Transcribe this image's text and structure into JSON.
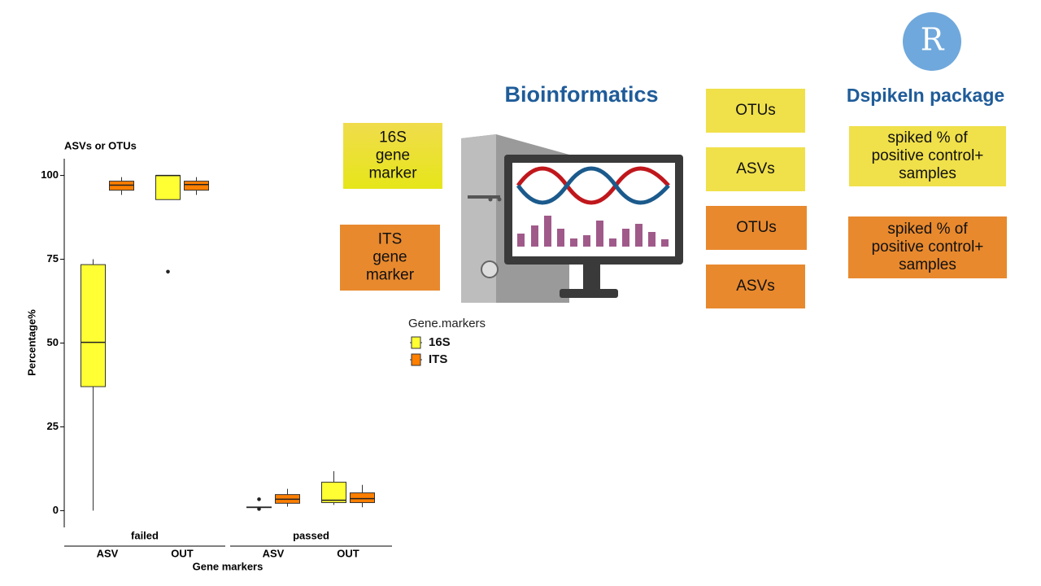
{
  "chart_data": {
    "type": "boxplot",
    "title": "ASVs or OTUs",
    "y_label": "Percentage%",
    "x_label": "Gene markers",
    "facets": [
      "failed",
      "passed"
    ],
    "categories": [
      "ASV",
      "OUT"
    ],
    "ylim": [
      -5,
      105
    ],
    "yticks": [
      0,
      25,
      50,
      75,
      100
    ],
    "legend_title": "Gene.markers",
    "series": [
      {
        "name": "16S",
        "color": "#ffff33",
        "boxes": [
          [
            {
              "min": 0,
              "q1": 37,
              "median": 50.2,
              "q3": 73.4,
              "max": 75
            },
            {
              "min": 92.8,
              "q1": 92.8,
              "median": 100,
              "q3": 100,
              "max": 100,
              "outliers": [
                71.3
              ]
            }
          ],
          [
            {
              "min": 0.8,
              "q1": 0.9,
              "median": 1,
              "q3": 1.1,
              "max": 1.2,
              "outliers": [
                3.4,
                0.5
              ]
            },
            {
              "min": 1.7,
              "q1": 2.4,
              "median": 3.1,
              "q3": 8.5,
              "max": 11.8
            }
          ]
        ]
      },
      {
        "name": "ITS",
        "color": "#ff7f00",
        "boxes": [
          [
            {
              "min": 94.2,
              "q1": 95.6,
              "median": 97.1,
              "q3": 98.3,
              "max": 99.5
            },
            {
              "min": 94.2,
              "q1": 95.6,
              "median": 97.3,
              "q3": 98.3,
              "max": 99.5
            }
          ],
          [
            {
              "min": 1.2,
              "q1": 2.2,
              "median": 3.4,
              "q3": 4.8,
              "max": 6.5
            },
            {
              "min": 1,
              "q1": 2.4,
              "median": 3.6,
              "q3": 5.3,
              "max": 7.7
            }
          ]
        ]
      }
    ]
  },
  "diagram": {
    "title": "Bioinformatics",
    "package_title": "DspikeIn package",
    "logo": "R",
    "markers": [
      {
        "lines": [
          "16S",
          "gene",
          "marker"
        ]
      },
      {
        "lines": [
          "ITS",
          "gene",
          "marker"
        ]
      }
    ],
    "outputs": [
      "OTUs",
      "ASVs",
      "OTUs",
      "ASVs"
    ],
    "package_outputs": [
      {
        "lines": [
          "spiked % of",
          "positive control+",
          "samples"
        ]
      },
      {
        "lines": [
          "spiked % of",
          "positive control+",
          "samples"
        ]
      }
    ]
  }
}
